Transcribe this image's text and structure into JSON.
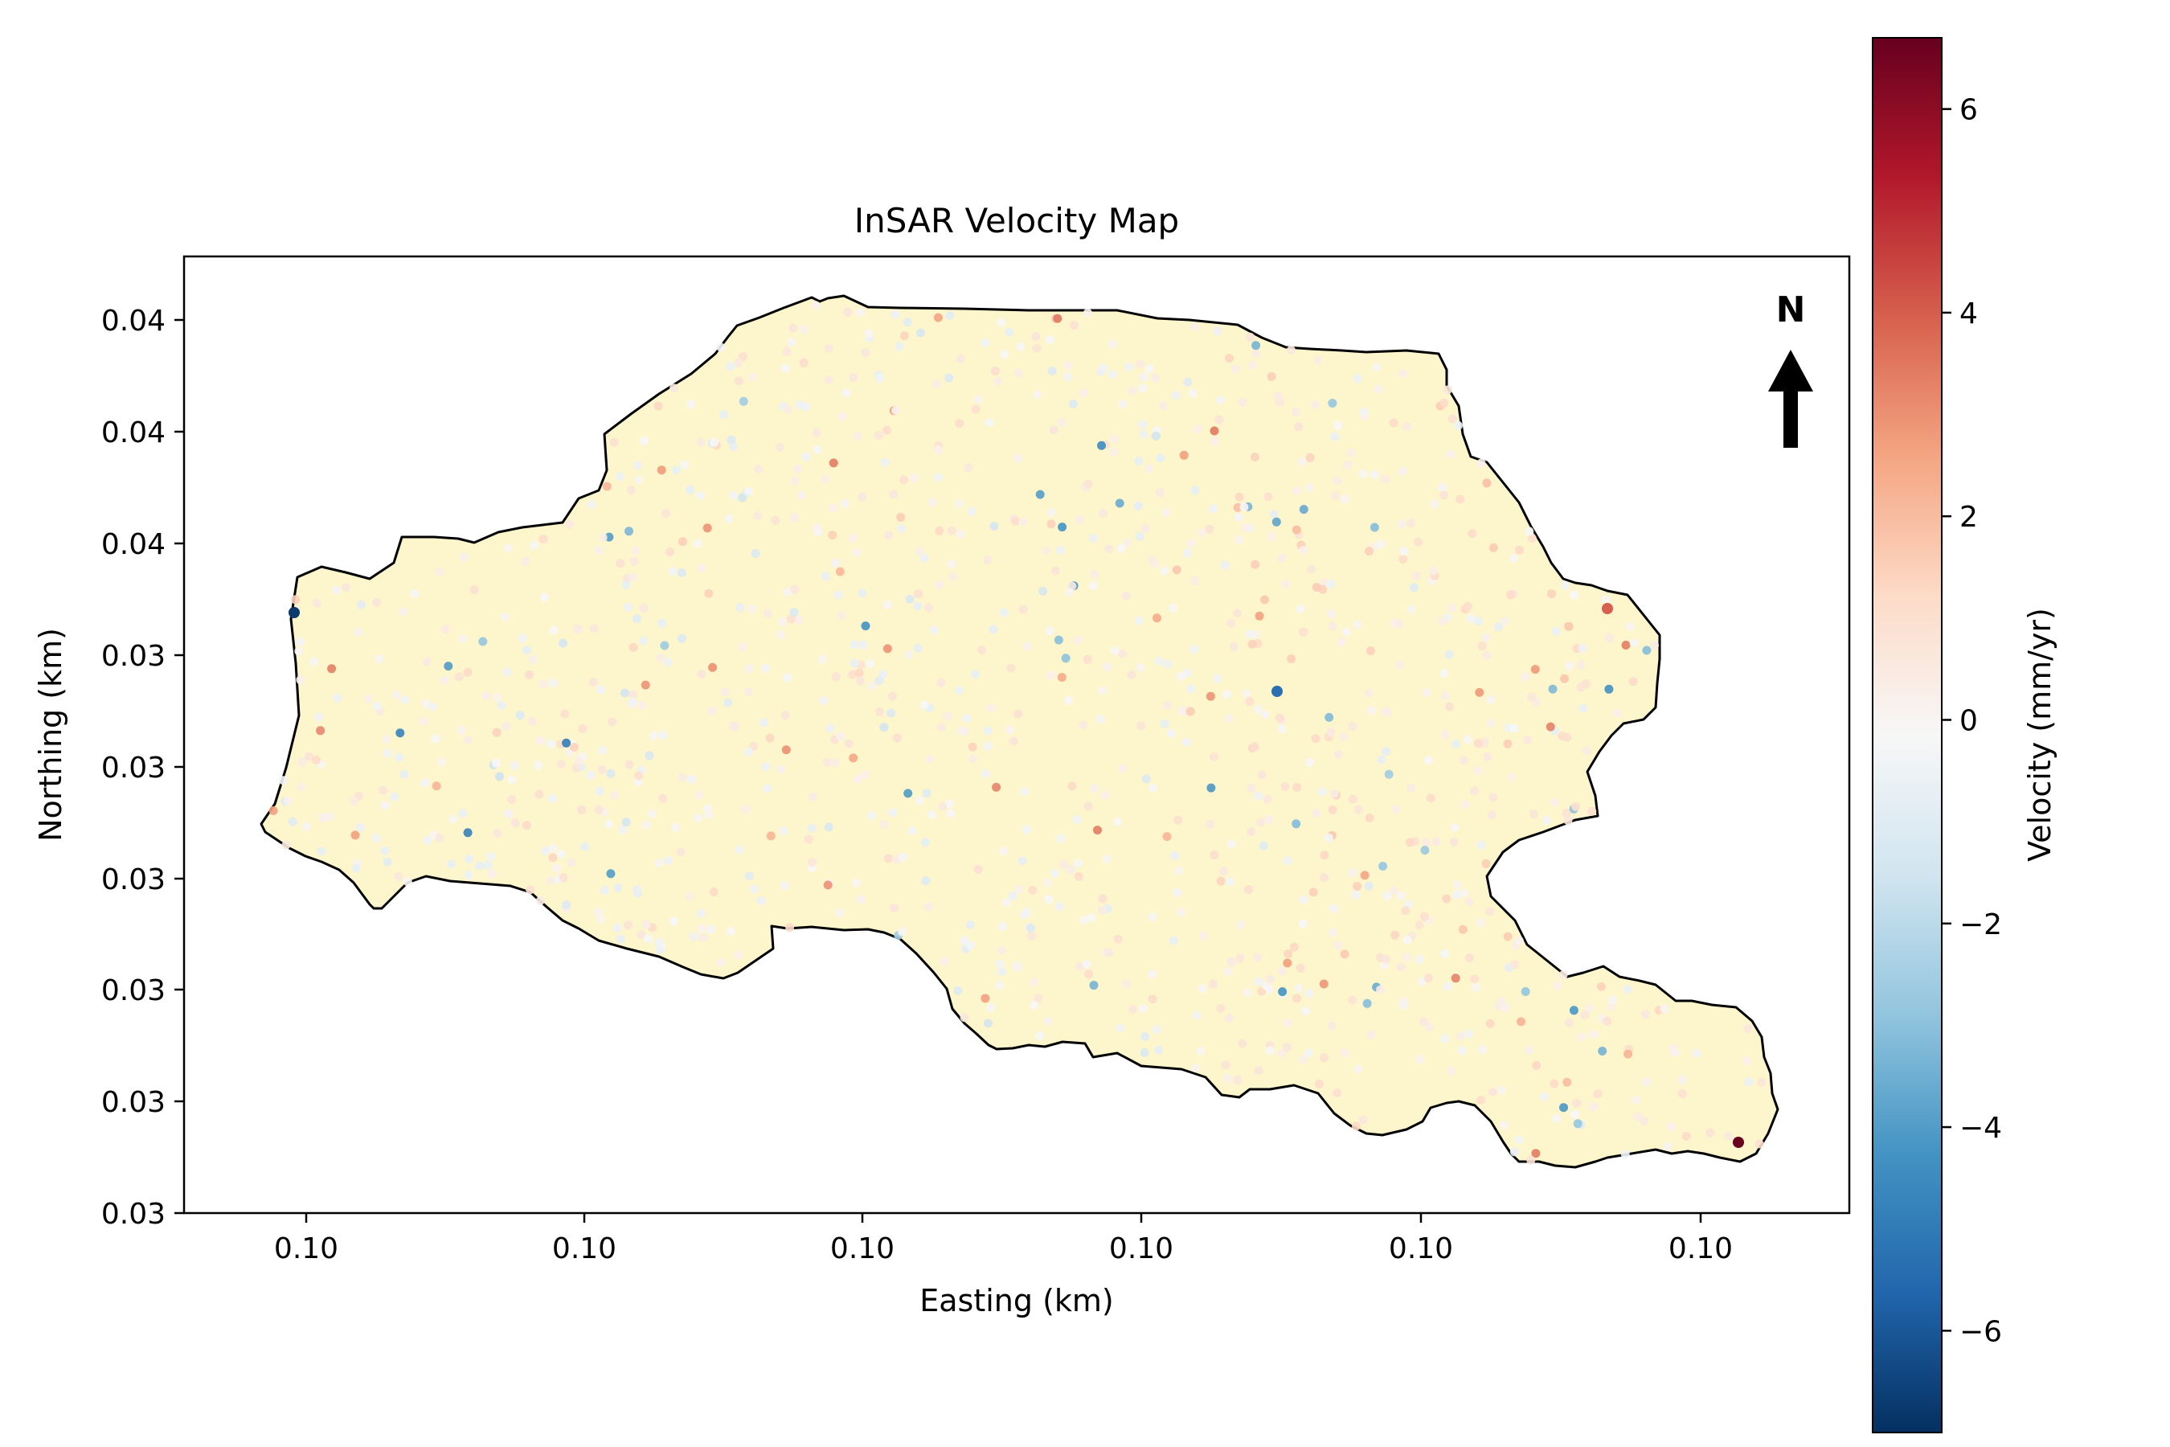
{
  "chart_data": {
    "type": "scatter",
    "title": "InSAR Velocity Map",
    "xlabel": "Easting (km)",
    "ylabel": "Northing (km)",
    "x_tick_labels": [
      "0.10",
      "0.10",
      "0.10",
      "0.10",
      "0.10",
      "0.10"
    ],
    "y_tick_labels": [
      "0.04",
      "0.04",
      "0.04",
      "0.03",
      "0.03",
      "0.03",
      "0.03",
      "0.03",
      "0.03"
    ],
    "north_arrow_label": "N",
    "basin_fill_color": "#fdf5cc",
    "colorbar": {
      "label": "Velocity (mm/yr)",
      "colormap": "RdBu_r",
      "range": [
        -7,
        6.7
      ],
      "ticks": [
        6,
        4,
        2,
        0,
        -2,
        -4,
        -6
      ],
      "tick_labels": [
        "6",
        "4",
        "2",
        "0",
        "−2",
        "−4",
        "−6"
      ]
    },
    "points_description": "Dense scatter of InSAR measurement points coloured by velocity (mm/yr), mostly within ±2 mm/yr",
    "notable_points": [
      {
        "velocity": 6.6,
        "location": "south-east tip"
      },
      {
        "velocity": -6.5,
        "location": "west edge"
      },
      {
        "velocity": -5.0,
        "location": "central east"
      },
      {
        "velocity": 3.5,
        "location": "east"
      }
    ]
  }
}
